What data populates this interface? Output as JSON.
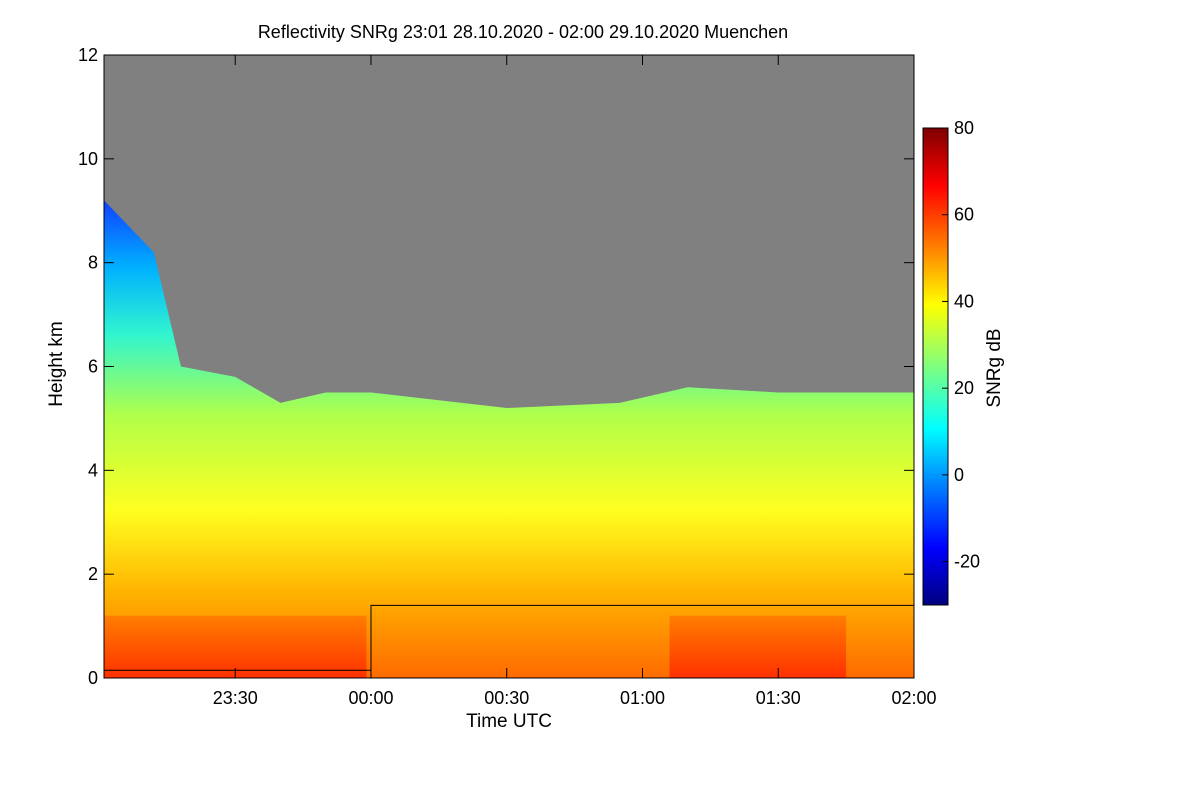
{
  "chart_data": {
    "type": "heatmap",
    "title": "Reflectivity SNRg   23:01 28.10.2020 - 02:00 29.10.2020 Muenchen",
    "xlabel": "Time UTC",
    "ylabel": "Height km",
    "x_ticks": [
      "23:30",
      "00:00",
      "00:30",
      "01:00",
      "01:30",
      "02:00"
    ],
    "y_ticks": [
      "0",
      "2",
      "4",
      "6",
      "8",
      "10",
      "12"
    ],
    "xlim": [
      "23:01",
      "02:00"
    ],
    "ylim": [
      0,
      12
    ],
    "grid": false,
    "no_data_color": "#808080",
    "colorbar": {
      "label": "SNRg dB",
      "ticks": [
        "80",
        "60",
        "40",
        "20",
        "0",
        "-20"
      ],
      "range": [
        -30,
        80
      ],
      "colors": [
        "#00007f",
        "#0000ff",
        "#007fff",
        "#00ffff",
        "#7fff7f",
        "#ffff00",
        "#ff7f00",
        "#ff0000",
        "#7f0000"
      ]
    },
    "cloud_top_km": [
      {
        "time": "23:01",
        "top": 9.2
      },
      {
        "time": "23:12",
        "top": 8.2
      },
      {
        "time": "23:18",
        "top": 6.0
      },
      {
        "time": "23:30",
        "top": 5.8
      },
      {
        "time": "23:40",
        "top": 5.3
      },
      {
        "time": "23:50",
        "top": 5.5
      },
      {
        "time": "00:00",
        "top": 5.5
      },
      {
        "time": "00:30",
        "top": 5.2
      },
      {
        "time": "00:55",
        "top": 5.3
      },
      {
        "time": "01:10",
        "top": 5.6
      },
      {
        "time": "01:30",
        "top": 5.5
      },
      {
        "time": "02:00",
        "top": 5.5
      }
    ],
    "rain_layer_top_km": [
      {
        "time": "23:01",
        "top": 1.2
      },
      {
        "time": "23:59",
        "top": 1.2
      },
      {
        "time": "01:06",
        "top": 1.2
      },
      {
        "time": "01:45",
        "top": 1.2
      }
    ],
    "black_line_km": [
      {
        "time": "23:01",
        "h": 0.15
      },
      {
        "time": "00:00",
        "h": 0.15
      },
      {
        "time": "00:00",
        "h": 1.4
      },
      {
        "time": "02:00",
        "h": 1.4
      }
    ]
  }
}
